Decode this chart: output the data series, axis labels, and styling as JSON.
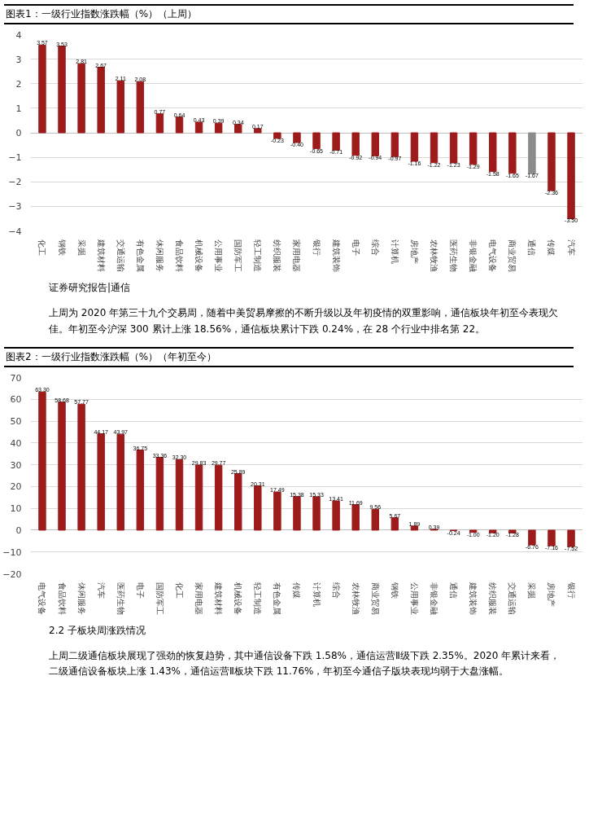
{
  "chart_data": [
    {
      "type": "bar",
      "title": "图表1：一级行业指数涨跌幅（%）（上周）",
      "categories": [
        "化工",
        "钢铁",
        "采掘",
        "建筑材料",
        "交通运输",
        "有色金属",
        "休闲服务",
        "食品饮料",
        "机械设备",
        "公用事业",
        "国防军工",
        "轻工制造",
        "纺织服装",
        "家用电器",
        "银行",
        "建筑装饰",
        "电子",
        "综合",
        "计算机",
        "房地产",
        "农林牧渔",
        "医药生物",
        "非银金融",
        "电气设备",
        "商业贸易",
        "通信",
        "传媒",
        "汽车"
      ],
      "values": [
        3.57,
        3.53,
        2.81,
        2.67,
        2.11,
        2.08,
        0.77,
        0.64,
        0.43,
        0.39,
        0.34,
        0.17,
        -0.23,
        -0.4,
        -0.65,
        -0.71,
        -0.92,
        -0.94,
        -0.97,
        -1.16,
        -1.22,
        -1.23,
        -1.29,
        -1.58,
        -1.65,
        -1.67,
        -2.36,
        -3.5
      ],
      "value_labels": [
        "3.57",
        "3.53",
        "2.81",
        "2.67",
        "2.11",
        "2.08",
        "0.77",
        "0.64",
        "0.43",
        "0.39",
        "0.34",
        "0.17",
        "-0.23",
        "-0.40",
        "-0.65",
        "-0.71",
        "-0.92",
        "-0.94",
        "-0.97",
        "-1.16",
        "-1.22",
        "-1.23",
        "-1.29",
        "-1.58",
        "-1.65",
        "-1.67",
        "-2.36",
        "-3.50"
      ],
      "colors": [
        "#9e1b1b",
        "#9e1b1b",
        "#9e1b1b",
        "#9e1b1b",
        "#9e1b1b",
        "#9e1b1b",
        "#9e1b1b",
        "#9e1b1b",
        "#9e1b1b",
        "#9e1b1b",
        "#9e1b1b",
        "#9e1b1b",
        "#9e1b1b",
        "#9e1b1b",
        "#9e1b1b",
        "#9e1b1b",
        "#9e1b1b",
        "#9e1b1b",
        "#9e1b1b",
        "#9e1b1b",
        "#9e1b1b",
        "#9e1b1b",
        "#9e1b1b",
        "#9e1b1b",
        "#9e1b1b",
        "#8c8c8c",
        "#9e1b1b",
        "#9e1b1b"
      ],
      "ylim": [
        -4,
        4
      ],
      "yticks": [
        -4,
        -3,
        -2,
        -1,
        0,
        1,
        2,
        3,
        4
      ],
      "grid": "y",
      "annotations": [
        "证券研究报告|通信",
        "上周为 2020 年第三十九个交易周，随着中美贸易摩擦的不断升级以及年初疫情的双重影响，通信板块年初至今表现欠佳。年初至今沪深 300 累计上涨 18.56%，通信板块累计下跌 0.24%，在 28 个行业中排名第 22。"
      ]
    },
    {
      "type": "bar",
      "title": "图表2：一级行业指数涨跌幅（%）（年初至今）",
      "categories": [
        "电气设备",
        "食品饮料",
        "休闲服务",
        "汽车",
        "医药生物",
        "电子",
        "国防军工",
        "化工",
        "家用电器",
        "建筑材料",
        "机械设备",
        "轻工制造",
        "有色金属",
        "传媒",
        "计算机",
        "综合",
        "农林牧渔",
        "商业贸易",
        "钢铁",
        "公用事业",
        "非银金融",
        "通信",
        "建筑装饰",
        "纺织服装",
        "交通运输",
        "采掘",
        "房地产",
        "银行"
      ],
      "values": [
        63.3,
        58.68,
        57.77,
        44.17,
        43.97,
        36.75,
        33.36,
        32.3,
        29.83,
        29.77,
        25.89,
        20.31,
        17.49,
        15.38,
        15.33,
        13.41,
        11.69,
        9.56,
        5.67,
        1.89,
        0.39,
        -0.24,
        -1.0,
        -1.2,
        -1.28,
        -6.76,
        -7.16,
        -7.52
      ],
      "value_labels": [
        "63.30",
        "58.68",
        "57.77",
        "44.17",
        "43.97",
        "36.75",
        "33.36",
        "32.30",
        "29.83",
        "29.77",
        "25.89",
        "20.31",
        "17.49",
        "15.38",
        "15.33",
        "13.41",
        "11.69",
        "9.56",
        "5.67",
        "1.89",
        "0.39",
        "-0.24",
        "-1.00",
        "-1.20",
        "-1.28",
        "-6.76",
        "-7.16",
        "-7.52"
      ],
      "color": "#9e1b1b",
      "ylim": [
        -20,
        70
      ],
      "yticks": [
        -20,
        -10,
        0,
        10,
        20,
        30,
        40,
        50,
        60,
        70
      ],
      "grid": "y",
      "annotations": [
        "2.2 子板块周涨跌情况",
        "上周二级通信板块展现了强劲的恢复趋势，其中通信设备下跌 1.58%，通信运营Ⅱ级下跌 2.35%。2020 年累计来看，二级通信设备板块上涨 1.43%，通信运营Ⅱ板块下跌 11.76%，年初至今通信子版块表现均弱于大盘涨幅。"
      ]
    }
  ]
}
